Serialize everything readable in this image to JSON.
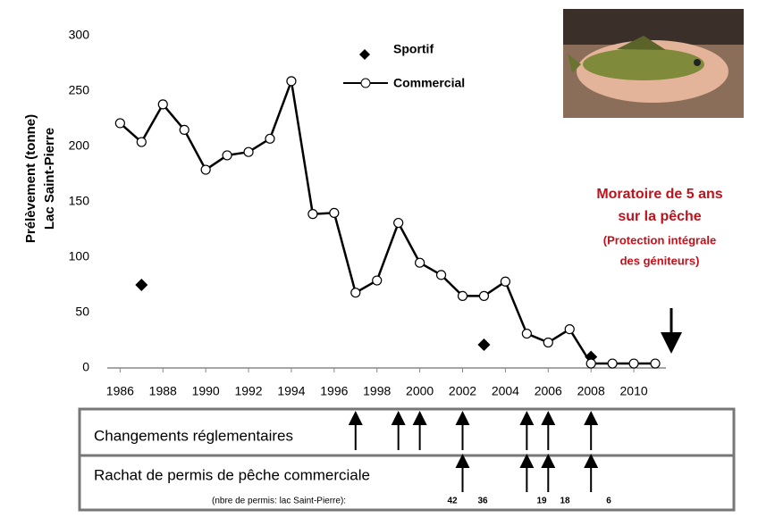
{
  "chart_data": {
    "type": "line",
    "y_label_lines": [
      "Prélèvement (tonne)",
      "Lac Saint-Pierre"
    ],
    "xlim": [
      1985.4,
      2011.5
    ],
    "xticks": [
      1986,
      1988,
      1990,
      1992,
      1994,
      1996,
      1998,
      2000,
      2002,
      2004,
      2006,
      2008,
      2010
    ],
    "ylim": [
      0,
      300
    ],
    "yticks": [
      0,
      50,
      100,
      150,
      200,
      250,
      300
    ],
    "grid": false,
    "series": [
      {
        "name": "Sportif",
        "color": "#000000",
        "marker": "diamond",
        "x": [
          1987,
          2003,
          2008
        ],
        "values": [
          75,
          21,
          10
        ]
      },
      {
        "name": "Commercial",
        "color": "#000000",
        "marker": "circle",
        "x": [
          1986,
          1987,
          1988,
          1989,
          1990,
          1991,
          1992,
          1993,
          1994,
          1995,
          1996,
          1997,
          1998,
          1999,
          2000,
          2001,
          2002,
          2003,
          2004,
          2005,
          2006,
          2007,
          2008,
          2009,
          2010,
          2011
        ],
        "values": [
          221,
          204,
          238,
          215,
          179,
          192,
          195,
          207,
          259,
          139,
          140,
          68,
          79,
          131,
          95,
          84,
          65,
          65,
          78,
          31,
          23,
          35,
          4,
          4,
          4,
          4
        ]
      }
    ],
    "annotation_lines": [
      "Moratoire de 5 ans",
      "sur la pêche",
      "(Protection intégrale",
      "des géniteurs)"
    ]
  },
  "panel": {
    "row1_label": "Changements réglementaires",
    "row1_years": [
      1997,
      1999,
      2000,
      2002,
      2005,
      2006,
      2008
    ],
    "row2_label": "Rachat de permis de pêche commerciale",
    "row2_years": [
      2002,
      2005,
      2006,
      2008
    ],
    "permits_label": "(nbre de permis: lac Saint-Pierre):",
    "permits": [
      42,
      36,
      19,
      18,
      6
    ]
  }
}
